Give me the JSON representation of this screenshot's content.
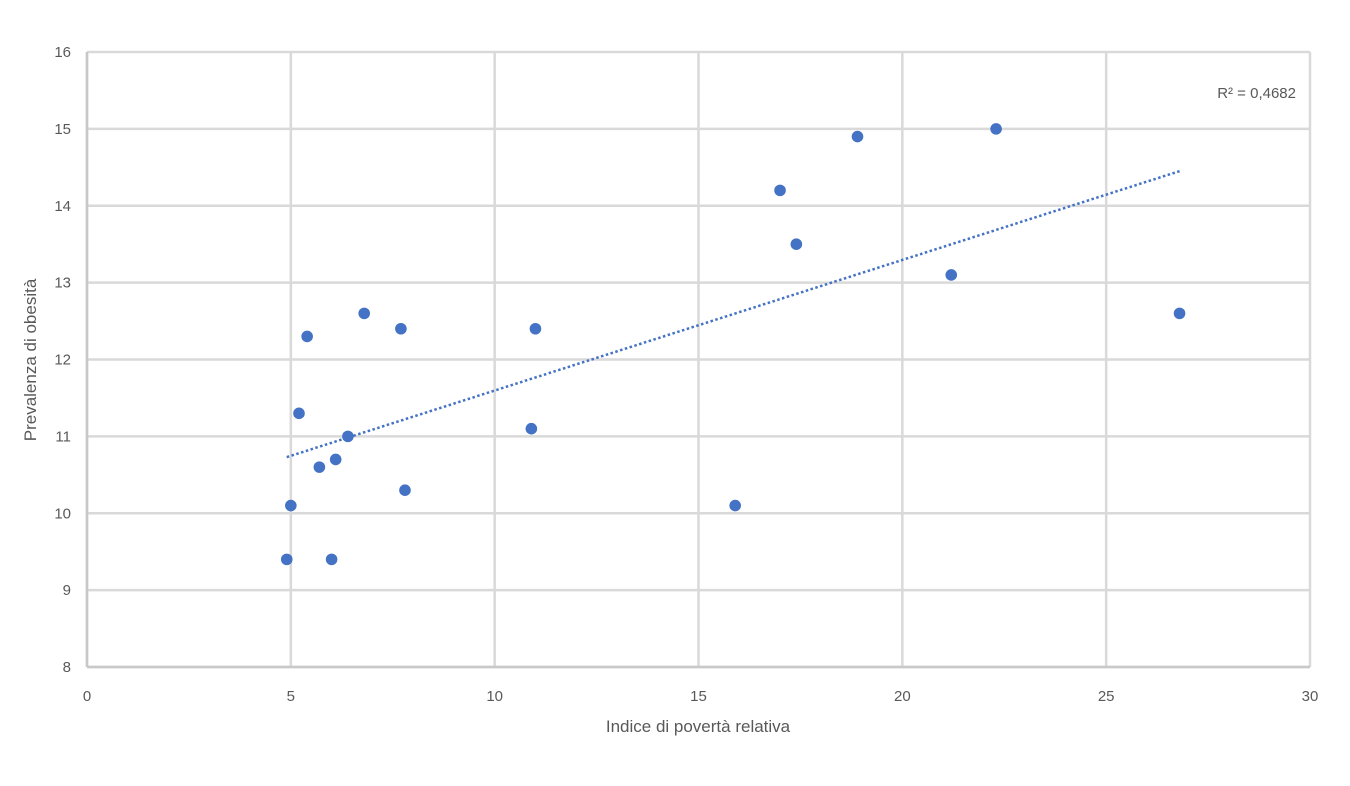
{
  "chart_data": {
    "type": "scatter",
    "title": "",
    "xlabel": "Indice di povertà relativa",
    "ylabel": "Prevalenza di obesità",
    "xlim": [
      0,
      30
    ],
    "ylim": [
      8,
      16
    ],
    "xticks": [
      0,
      5,
      10,
      15,
      20,
      25,
      30
    ],
    "yticks": [
      8,
      9,
      10,
      11,
      12,
      13,
      14,
      15,
      16
    ],
    "grid": true,
    "legend": "none",
    "series": [
      {
        "color": "#4472C4",
        "points": [
          {
            "x": 4.9,
            "y": 9.4
          },
          {
            "x": 5.0,
            "y": 10.1
          },
          {
            "x": 5.2,
            "y": 11.3
          },
          {
            "x": 5.4,
            "y": 12.3
          },
          {
            "x": 5.7,
            "y": 10.6
          },
          {
            "x": 6.0,
            "y": 9.4
          },
          {
            "x": 6.1,
            "y": 10.7
          },
          {
            "x": 6.4,
            "y": 11.0
          },
          {
            "x": 6.8,
            "y": 12.6
          },
          {
            "x": 7.7,
            "y": 12.4
          },
          {
            "x": 7.8,
            "y": 10.3
          },
          {
            "x": 10.9,
            "y": 11.1
          },
          {
            "x": 11.0,
            "y": 12.4
          },
          {
            "x": 15.9,
            "y": 10.1
          },
          {
            "x": 17.0,
            "y": 14.2
          },
          {
            "x": 17.4,
            "y": 13.5
          },
          {
            "x": 18.9,
            "y": 14.9
          },
          {
            "x": 21.2,
            "y": 13.1
          },
          {
            "x": 22.3,
            "y": 15.0
          },
          {
            "x": 26.8,
            "y": 12.6
          }
        ]
      }
    ],
    "trendline": {
      "type": "linear",
      "style": "dotted",
      "color": "#4472C4",
      "x_range": [
        4.9,
        26.8
      ],
      "y_range": [
        10.73,
        14.45
      ]
    },
    "annotation": "R² = 0,4682"
  }
}
